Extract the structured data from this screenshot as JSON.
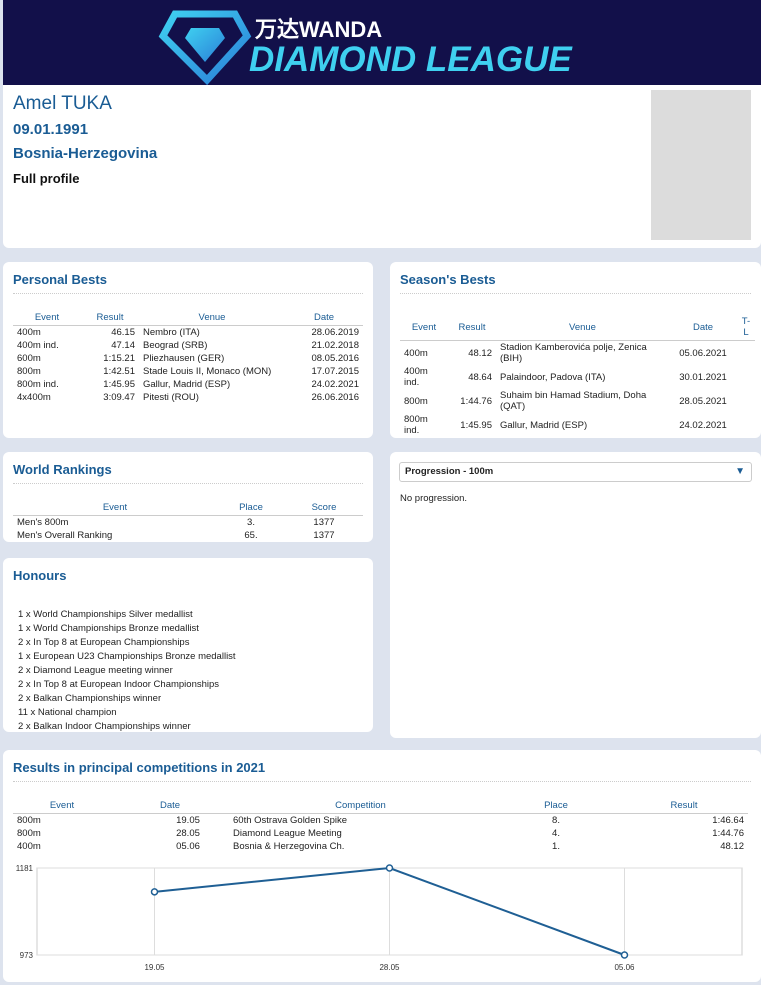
{
  "header": {
    "brand": "万达WANDA",
    "league": "DIAMOND LEAGUE"
  },
  "athlete": {
    "name": "Amel TUKA",
    "dob": "09.01.1991",
    "country": "Bosnia-Herzegovina",
    "link": "Full profile"
  },
  "personal_bests": {
    "title": "Personal Bests",
    "columns": [
      "Event",
      "Result",
      "Venue",
      "Date"
    ],
    "rows": [
      [
        "400m",
        "46.15",
        "Nembro (ITA)",
        "28.06.2019"
      ],
      [
        "400m ind.",
        "47.14",
        "Beograd (SRB)",
        "21.02.2018"
      ],
      [
        "600m",
        "1:15.21",
        "Pliezhausen (GER)",
        "08.05.2016"
      ],
      [
        "800m",
        "1:42.51",
        "Stade Louis II, Monaco (MON)",
        "17.07.2015"
      ],
      [
        "800m ind.",
        "1:45.95",
        "Gallur, Madrid (ESP)",
        "24.02.2021"
      ],
      [
        "4x400m",
        "3:09.47",
        "Pitesti (ROU)",
        "26.06.2016"
      ]
    ]
  },
  "seasons_bests": {
    "title": "Season's Bests",
    "columns": [
      "Event",
      "Result",
      "Venue",
      "Date",
      "T-L"
    ],
    "rows": [
      [
        "400m",
        "48.12",
        "Stadion Kamberovića polje, Zenica (BIH)",
        "05.06.2021"
      ],
      [
        "400m ind.",
        "48.64",
        "Palaindoor, Padova (ITA)",
        "30.01.2021"
      ],
      [
        "800m",
        "1:44.76",
        "Suhaim bin Hamad Stadium, Doha (QAT)",
        "28.05.2021"
      ],
      [
        "800m ind.",
        "1:45.95",
        "Gallur, Madrid (ESP)",
        "24.02.2021"
      ]
    ]
  },
  "world_rankings": {
    "title": "World Rankings",
    "columns": [
      "Event",
      "Place",
      "Score"
    ],
    "rows": [
      [
        "Men's 800m",
        "3.",
        "1377"
      ],
      [
        "Men's Overall Ranking",
        "65.",
        "1377"
      ]
    ]
  },
  "honours": {
    "title": "Honours",
    "items": [
      "1 x World Championships Silver medallist",
      "1 x World Championships Bronze medallist",
      "2 x In Top 8 at European Championships",
      "1 x European U23 Championships Bronze medallist",
      "2 x Diamond League meeting winner",
      "2 x In Top 8 at European Indoor Championships",
      "2 x Balkan Championships winner",
      "11 x National champion",
      "2 x Balkan Indoor Championships winner"
    ]
  },
  "progression": {
    "select": "Progression - 100m",
    "text": "No progression."
  },
  "results": {
    "title": "Results in principal competitions in 2021",
    "columns": [
      "Event",
      "Date",
      "Competition",
      "Place",
      "Result"
    ],
    "rows": [
      [
        "800m",
        "19.05",
        "60th Ostrava Golden Spike",
        "8.",
        "1:46.64"
      ],
      [
        "800m",
        "28.05",
        "Diamond League Meeting",
        "4.",
        "1:44.76"
      ],
      [
        "400m",
        "05.06",
        "Bosnia & Herzegovina Ch.",
        "1.",
        "48.12"
      ]
    ]
  },
  "chart_data": {
    "type": "line",
    "categories": [
      "19.05",
      "28.05",
      "05.06"
    ],
    "values": [
      1124,
      1181,
      973
    ],
    "color": "#1f5f94",
    "ylim": [
      973,
      1181
    ],
    "yticks": [
      973,
      1181
    ],
    "grid": true
  }
}
